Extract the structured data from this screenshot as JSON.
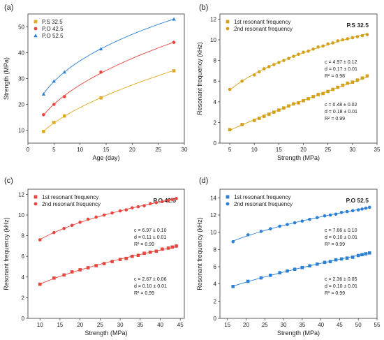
{
  "chart_data": [
    {
      "panel_label": "(a)",
      "type": "scatter",
      "xlabel": "Age (day)",
      "ylabel": "Strength (MPa)",
      "xlim": [
        0,
        30
      ],
      "ylim": [
        5,
        55
      ],
      "xticks": [
        0,
        5,
        10,
        15,
        20,
        25,
        30
      ],
      "yticks": [
        10,
        20,
        30,
        40,
        50
      ],
      "legend_position": "top-left",
      "series": [
        {
          "name": "P.S 32.5",
          "color": "#e2aa22",
          "marker": "square",
          "x": [
            3,
            5,
            7,
            14,
            28
          ],
          "y": [
            9.5,
            13.0,
            15.5,
            22.5,
            33.0
          ],
          "fit": true
        },
        {
          "name": "P.O 42.5",
          "color": "#e8463c",
          "marker": "circle",
          "x": [
            3,
            5,
            7,
            14,
            28
          ],
          "y": [
            16.0,
            20.0,
            23.0,
            32.5,
            44.0
          ],
          "fit": true
        },
        {
          "name": "P.O 52.5",
          "color": "#2a7fd6",
          "marker": "triangle",
          "x": [
            3,
            5,
            7,
            14,
            28
          ],
          "y": [
            24.0,
            29.0,
            32.5,
            41.5,
            53.0
          ],
          "fit": true
        }
      ]
    },
    {
      "panel_label": "(b)",
      "type": "scatter",
      "title": "P.S 32.5",
      "xlabel": "Strength (MPa)",
      "ylabel": "Resonant frequency (kHz)",
      "xlim": [
        3,
        35
      ],
      "ylim": [
        0,
        12.5
      ],
      "xticks": [
        5,
        10,
        15,
        20,
        25,
        30,
        35
      ],
      "yticks": [
        0,
        2,
        4,
        6,
        8,
        10,
        12
      ],
      "legend_position": "top-left",
      "series": [
        {
          "name": "1st resonant frequency",
          "color": "#d4a017",
          "marker": "square",
          "x": [
            5,
            7.5,
            10,
            11,
            12,
            13,
            14,
            15,
            16,
            17,
            18,
            19,
            20,
            21,
            22,
            23,
            24,
            25,
            26,
            27,
            28,
            29,
            30,
            31,
            32,
            33
          ],
          "y": [
            1.3,
            1.8,
            2.2,
            2.4,
            2.6,
            2.8,
            3.0,
            3.2,
            3.4,
            3.6,
            3.8,
            3.9,
            4.1,
            4.3,
            4.5,
            4.7,
            4.8,
            5.0,
            5.2,
            5.4,
            5.6,
            5.8,
            5.9,
            6.1,
            6.3,
            6.5
          ],
          "fit": true
        },
        {
          "name": "2nd resonant frequency",
          "color": "#d4a017",
          "marker": "circle",
          "x": [
            5,
            7.5,
            10,
            11,
            12,
            13,
            14,
            15,
            16,
            17,
            18,
            19,
            20,
            21,
            22,
            23,
            24,
            25,
            26,
            27,
            28,
            29,
            30,
            31,
            32,
            33
          ],
          "y": [
            5.2,
            6.0,
            6.6,
            6.9,
            7.2,
            7.4,
            7.6,
            7.8,
            8.0,
            8.2,
            8.4,
            8.6,
            8.8,
            8.9,
            9.1,
            9.3,
            9.4,
            9.6,
            9.7,
            9.9,
            10.0,
            10.1,
            10.2,
            10.3,
            10.4,
            10.5
          ],
          "fit": true
        }
      ],
      "annotations": [
        {
          "lines": [
            "c = 4.97 ± 0.12",
            "d = 0.17 ± 0.01",
            "R² = 0.98"
          ],
          "color": "#b8860b"
        },
        {
          "lines": [
            "c = 0.48 ± 0.02",
            "d = 0.18 ± 0.01",
            "R² = 0.99"
          ],
          "color": "#b8860b"
        }
      ]
    },
    {
      "panel_label": "(c)",
      "type": "scatter",
      "title": "P.O 42.5",
      "xlabel": "Strength (MPa)",
      "ylabel": "Resonant frequency (kHz)",
      "xlim": [
        7,
        46
      ],
      "ylim": [
        0,
        12.5
      ],
      "xticks": [
        10,
        15,
        20,
        25,
        30,
        35,
        40,
        45
      ],
      "yticks": [
        0,
        2,
        4,
        6,
        8,
        10,
        12
      ],
      "legend_position": "top-left",
      "series": [
        {
          "name": "1st resonant frequency",
          "color": "#e8463c",
          "marker": "square",
          "x": [
            10,
            13.5,
            16,
            18,
            20,
            22,
            24,
            26,
            28,
            30,
            31.5,
            33,
            34.5,
            36,
            37.5,
            39,
            40.5,
            42,
            43,
            44
          ],
          "y": [
            3.3,
            3.9,
            4.2,
            4.5,
            4.7,
            4.9,
            5.1,
            5.3,
            5.5,
            5.7,
            5.8,
            6.0,
            6.1,
            6.3,
            6.4,
            6.5,
            6.7,
            6.8,
            6.9,
            7.0
          ],
          "fit": true
        },
        {
          "name": "2nd resonant frequency",
          "color": "#e8463c",
          "marker": "circle",
          "x": [
            10,
            13.5,
            16,
            18,
            20,
            22,
            24,
            26,
            28,
            30,
            31.5,
            33,
            34.5,
            36,
            37.5,
            39,
            40.5,
            42,
            43,
            44
          ],
          "y": [
            7.6,
            8.3,
            8.7,
            9.0,
            9.3,
            9.6,
            9.8,
            10.0,
            10.2,
            10.4,
            10.5,
            10.7,
            10.8,
            10.9,
            11.1,
            11.2,
            11.3,
            11.4,
            11.5,
            11.6
          ],
          "fit": true
        }
      ],
      "annotations": [
        {
          "lines": [
            "c = 6.97 ± 0.10",
            "d = 0.11 ± 0.01",
            "R² = 0.99"
          ],
          "color": "#d63030"
        },
        {
          "lines": [
            "c = 2.67 ± 0.06",
            "d = 0.10 ± 0.01",
            "R² = 0.99"
          ],
          "color": "#d63030"
        }
      ]
    },
    {
      "panel_label": "(d)",
      "type": "scatter",
      "title": "P.O 52.5",
      "xlabel": "Strength (MPa)",
      "ylabel": "Resonant frequency (kHz)",
      "xlim": [
        13,
        55
      ],
      "ylim": [
        0,
        15
      ],
      "xticks": [
        15,
        20,
        25,
        30,
        35,
        40,
        45,
        50,
        55
      ],
      "yticks": [
        0,
        2,
        4,
        6,
        8,
        10,
        12,
        14
      ],
      "legend_position": "top-left",
      "series": [
        {
          "name": "1st resonant frequency",
          "color": "#2a7fd6",
          "marker": "square",
          "x": [
            16.5,
            20.5,
            24,
            26.5,
            29,
            31,
            33,
            35,
            37,
            39,
            41,
            42.5,
            44,
            45.5,
            47,
            48.5,
            50,
            51,
            52,
            53
          ],
          "y": [
            3.7,
            4.3,
            4.7,
            5.0,
            5.3,
            5.5,
            5.7,
            5.9,
            6.1,
            6.3,
            6.5,
            6.6,
            6.8,
            6.9,
            7.0,
            7.1,
            7.3,
            7.4,
            7.5,
            7.6
          ],
          "fit": true
        },
        {
          "name": "2nd resonant frequency",
          "color": "#2a7fd6",
          "marker": "circle",
          "x": [
            16.5,
            20.5,
            24,
            26.5,
            29,
            31,
            33,
            35,
            37,
            39,
            41,
            42.5,
            44,
            45.5,
            47,
            48.5,
            50,
            51,
            52,
            53
          ],
          "y": [
            8.9,
            9.7,
            10.1,
            10.4,
            10.7,
            10.9,
            11.1,
            11.3,
            11.5,
            11.7,
            11.9,
            12.0,
            12.1,
            12.3,
            12.4,
            12.5,
            12.6,
            12.7,
            12.8,
            12.9
          ],
          "fit": true
        }
      ],
      "annotations": [
        {
          "lines": [
            "c = 7.66 ± 0.10",
            "d = 0.10 ± 0.01",
            "R² = 0.99"
          ],
          "color": "#1f5fae"
        },
        {
          "lines": [
            "c = 2.36 ± 0.05",
            "d = 0.10 ± 0.01",
            "R² = 0.99"
          ],
          "color": "#1f5fae"
        }
      ]
    }
  ]
}
